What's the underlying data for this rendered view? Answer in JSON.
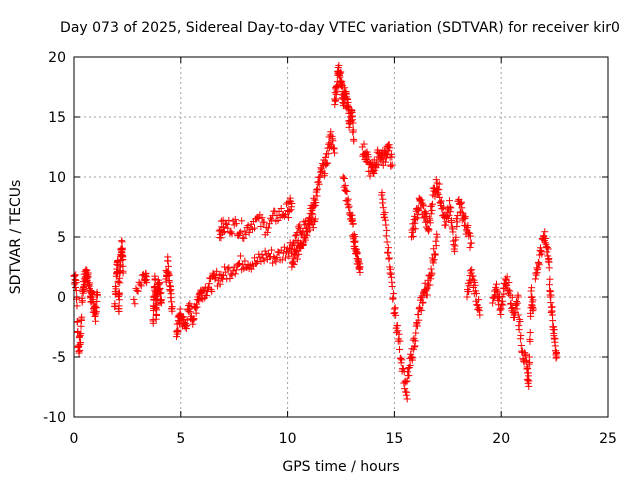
{
  "chart_data": {
    "type": "scatter",
    "title": "Day 073 of 2025, Sidereal Day-to-day VTEC variation (SDTVAR) for receiver kir0",
    "xlabel": "GPS time / hours",
    "ylabel": "SDTVAR / TECUs",
    "xlim": [
      0,
      25
    ],
    "ylim": [
      -10,
      20
    ],
    "xticks": [
      0,
      5,
      10,
      15,
      20,
      25
    ],
    "yticks": [
      -10,
      -5,
      0,
      5,
      10,
      15,
      20
    ],
    "xtick_labels": [
      "0",
      "5",
      "10",
      "15",
      "20",
      "25"
    ],
    "ytick_labels": [
      "-10",
      "-5",
      "0",
      "5",
      "10",
      "15",
      "20"
    ],
    "grid": true,
    "marker": "+",
    "series": [
      {
        "name": "SDTVAR",
        "color": "#ff0000",
        "segments": [
          {
            "x": [
              0.0,
              0.1,
              0.2,
              0.3,
              0.4,
              0.5,
              0.6,
              0.7,
              0.8,
              0.9,
              1.0,
              1.1
            ],
            "y": [
              1.8,
              1.2,
              -4.2,
              -3.8,
              0.5,
              1.5,
              2.2,
              1.0,
              0.0,
              -0.5,
              -1.5,
              0.2
            ]
          },
          {
            "x": [
              1.9,
              2.0,
              2.05,
              2.1,
              2.15,
              2.2,
              2.25,
              2.3
            ],
            "y": [
              -0.8,
              2.0,
              3.0,
              -1.2,
              2.5,
              3.5,
              4.6,
              2.0
            ]
          },
          {
            "x": [
              2.8,
              3.3,
              3.4
            ],
            "y": [
              -0.2,
              1.5,
              1.2
            ]
          },
          {
            "x": [
              3.7,
              3.75,
              3.8,
              3.85,
              3.9,
              4.0,
              4.1
            ],
            "y": [
              -2.0,
              0.0,
              1.5,
              -1.5,
              0.5,
              1.2,
              -0.5
            ]
          },
          {
            "x": [
              4.3,
              4.4,
              4.5,
              4.6
            ],
            "y": [
              1.5,
              3.0,
              0.5,
              -0.8
            ]
          },
          {
            "x": [
              4.8,
              4.9,
              5.0,
              5.2,
              5.4,
              5.6,
              5.8,
              6.0,
              6.3,
              6.6,
              7.0,
              7.5,
              8.0,
              8.5,
              9.0,
              9.5,
              10.0,
              10.3,
              10.6,
              11.0,
              11.3
            ],
            "y": [
              -3.3,
              -2.0,
              -1.5,
              -2.5,
              -1.0,
              -1.8,
              0.0,
              0.5,
              0.8,
              1.5,
              1.8,
              2.5,
              3.0,
              2.8,
              3.5,
              3.3,
              4.0,
              4.5,
              5.5,
              6.0,
              6.5
            ]
          },
          {
            "x": [
              6.8,
              7.0,
              7.5,
              8.0,
              8.5,
              9.0,
              9.5,
              10.0,
              10.2
            ],
            "y": [
              5.5,
              5.8,
              6.0,
              5.5,
              6.5,
              5.8,
              6.8,
              7.2,
              7.8
            ]
          },
          {
            "x": [
              10.2,
              10.4,
              10.6,
              10.8,
              11.0,
              11.2,
              11.4,
              11.6,
              11.8,
              12.0,
              12.2
            ],
            "y": [
              2.5,
              3.5,
              4.5,
              5.0,
              6.5,
              7.5,
              9.0,
              10.5,
              11.0,
              13.5,
              12.0
            ]
          },
          {
            "x": [
              12.2,
              12.3,
              12.4,
              12.5,
              12.6,
              12.7,
              12.8,
              12.9,
              13.0,
              13.1
            ],
            "y": [
              16.5,
              17.5,
              19.3,
              18.0,
              16.5,
              17.0,
              16.0,
              14.5,
              15.5,
              13.0
            ]
          },
          {
            "x": [
              12.6,
              12.8,
              13.0,
              13.1,
              13.2,
              13.3,
              13.4
            ],
            "y": [
              10.0,
              8.0,
              6.5,
              5.0,
              4.0,
              3.0,
              2.5
            ]
          },
          {
            "x": [
              13.5,
              13.7,
              13.9,
              14.1,
              14.3,
              14.5,
              14.7,
              14.9
            ],
            "y": [
              12.5,
              11.5,
              10.5,
              11.0,
              12.0,
              11.5,
              12.5,
              11.0
            ]
          },
          {
            "x": [
              14.4,
              14.6,
              14.8,
              15.0,
              15.2,
              15.4,
              15.6
            ],
            "y": [
              8.5,
              6.0,
              2.0,
              -1.0,
              -3.5,
              -6.0,
              -8.5
            ]
          },
          {
            "x": [
              15.6,
              15.8,
              16.0,
              16.2,
              16.4,
              16.6,
              16.8,
              17.0
            ],
            "y": [
              -7.0,
              -5.0,
              -3.0,
              -1.0,
              0.5,
              1.0,
              3.0,
              5.0
            ]
          },
          {
            "x": [
              15.8,
              16.0,
              16.2,
              16.4,
              16.6,
              16.8,
              17.0,
              17.2,
              17.4,
              17.6,
              17.8,
              18.0,
              18.2,
              18.4,
              18.6
            ],
            "y": [
              5.0,
              6.5,
              8.0,
              7.0,
              5.5,
              8.5,
              9.5,
              8.0,
              6.0,
              7.5,
              4.0,
              8.0,
              7.0,
              5.5,
              4.5
            ]
          },
          {
            "x": [
              18.4,
              18.6,
              18.8,
              19.0
            ],
            "y": [
              0.0,
              2.0,
              0.5,
              -1.5
            ]
          },
          {
            "x": [
              19.6,
              19.8,
              20.0,
              20.2,
              20.4,
              20.6,
              20.8
            ],
            "y": [
              -0.5,
              0.5,
              -1.0,
              1.5,
              0.5,
              -1.5,
              0.0
            ]
          },
          {
            "x": [
              20.8,
              21.0,
              21.2,
              21.3,
              21.4,
              21.5
            ],
            "y": [
              -1.5,
              -4.5,
              -6.0,
              -7.0,
              0.5,
              -1.0
            ]
          },
          {
            "x": [
              21.6,
              21.8,
              22.0,
              22.2,
              22.3,
              22.4,
              22.5,
              22.6
            ],
            "y": [
              1.5,
              3.5,
              5.0,
              4.0,
              0.0,
              -1.5,
              -3.5,
              -5.0
            ]
          }
        ]
      }
    ]
  }
}
